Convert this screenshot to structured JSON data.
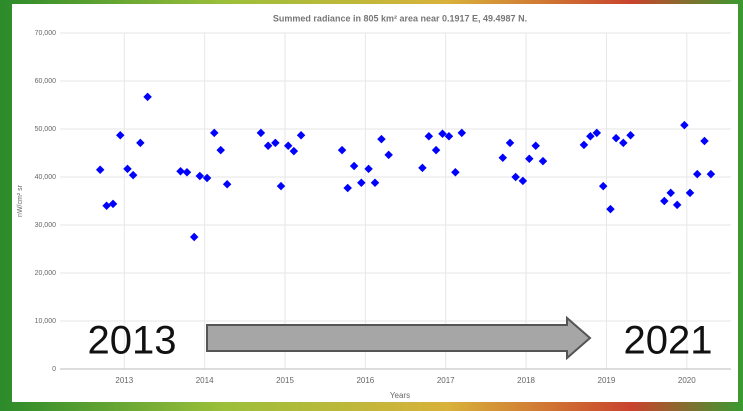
{
  "chart_data": {
    "type": "scatter",
    "title": "Summed radiance in 805 km² area near 0.1917 E, 49.4987 N.",
    "x_label": "Years",
    "y_label": "nW/cm² sr",
    "annotations": [
      "2013",
      "2021"
    ],
    "color": "#0000ff",
    "grid": true,
    "xlim": [
      2012.2,
      2020.55
    ],
    "xticks": [
      2013,
      2014,
      2015,
      2016,
      2017,
      2018,
      2019,
      2020
    ],
    "ylim": [
      0,
      70000
    ],
    "yticks": [
      0,
      {
        "value": 10000,
        "label": "10,000"
      },
      {
        "value": 20000,
        "label": "20,000"
      },
      {
        "value": 30000,
        "label": "30,000"
      },
      {
        "value": 40000,
        "label": "40,000"
      },
      {
        "value": 50000,
        "label": "50,000"
      },
      {
        "value": 60000,
        "label": "60,000"
      },
      {
        "value": 70000,
        "label": "70,000"
      }
    ],
    "x": [
      2012.7,
      2012.78,
      2012.86,
      2012.95,
      2013.04,
      2013.11,
      2013.2,
      2013.29,
      2013.7,
      2013.78,
      2013.87,
      2013.94,
      2014.03,
      2014.12,
      2014.2,
      2014.28,
      2014.7,
      2014.79,
      2014.88,
      2014.95,
      2015.04,
      2015.11,
      2015.2,
      2015.71,
      2015.78,
      2015.86,
      2015.95,
      2016.04,
      2016.12,
      2016.2,
      2016.29,
      2016.71,
      2016.79,
      2016.88,
      2016.96,
      2017.04,
      2017.12,
      2017.2,
      2017.71,
      2017.8,
      2017.87,
      2017.96,
      2018.04,
      2018.12,
      2018.21,
      2018.72,
      2018.8,
      2018.88,
      2018.96,
      2019.05,
      2019.12,
      2019.21,
      2019.3,
      2019.72,
      2019.8,
      2019.88,
      2019.97,
      2020.04,
      2020.13,
      2020.22,
      2020.3
    ],
    "values": [
      41500,
      34000,
      34400,
      48700,
      41700,
      40400,
      47100,
      56700,
      41200,
      41000,
      27500,
      40200,
      39800,
      49200,
      45600,
      38500,
      49200,
      46500,
      47100,
      38100,
      46500,
      45400,
      48700,
      45600,
      37700,
      42300,
      38800,
      41700,
      38800,
      47900,
      44600,
      41900,
      48500,
      45600,
      49000,
      48500,
      41000,
      49200,
      44000,
      47100,
      40000,
      39200,
      43800,
      46500,
      43300,
      46700,
      48500,
      49200,
      38100,
      33300,
      48100,
      47100,
      48700,
      35000,
      36700,
      34200,
      50800,
      36700,
      40600,
      47500,
      40600
    ]
  }
}
